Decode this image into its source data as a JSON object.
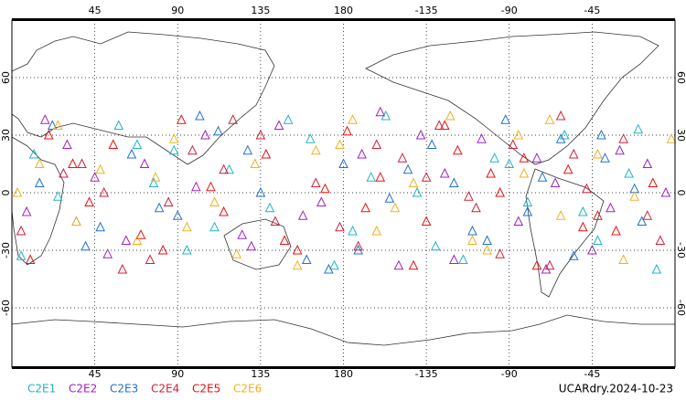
{
  "chart_data": {
    "type": "scatter",
    "source_label": "UCARdry.2024-10-23",
    "xlim": [
      0,
      360
    ],
    "ylim": [
      -90,
      90
    ],
    "grid": true,
    "xticks": [
      45,
      90,
      135,
      180,
      {
        "value": 225,
        "label": "-135"
      },
      {
        "value": 270,
        "label": "-90"
      },
      {
        "value": 315,
        "label": "-45"
      }
    ],
    "yticks": [
      60,
      30,
      0,
      -30,
      -60
    ],
    "series": [
      {
        "name": "C2E1",
        "color": "#1fb4c8",
        "x": [
          12,
          35,
          58,
          77,
          95,
          118,
          140,
          162,
          185,
          203,
          220,
          245,
          262,
          280,
          300,
          318,
          335,
          350,
          25,
          68,
          110,
          150,
          195,
          230,
          270,
          310,
          340,
          5,
          88,
          175
        ],
        "y": [
          20,
          -15,
          35,
          5,
          -30,
          12,
          -8,
          28,
          -20,
          40,
          0,
          -35,
          18,
          -5,
          30,
          -25,
          10,
          -40,
          -2,
          25,
          -18,
          38,
          8,
          -28,
          15,
          -10,
          33,
          -33,
          22,
          -38
        ]
      },
      {
        "name": "C2E2",
        "color": "#a020c0",
        "x": [
          8,
          30,
          52,
          72,
          100,
          125,
          145,
          168,
          190,
          210,
          235,
          255,
          275,
          295,
          315,
          330,
          355,
          18,
          62,
          105,
          158,
          200,
          240,
          285,
          325,
          45,
          130,
          222,
          290,
          345
        ],
        "y": [
          -10,
          25,
          -32,
          15,
          3,
          -22,
          35,
          -5,
          20,
          -38,
          10,
          28,
          -15,
          5,
          -30,
          22,
          0,
          38,
          -25,
          30,
          -12,
          42,
          -35,
          18,
          -8,
          8,
          -28,
          30,
          -40,
          15
        ]
      },
      {
        "name": "C2E3",
        "color": "#2070d0",
        "x": [
          15,
          40,
          65,
          90,
          112,
          135,
          160,
          180,
          205,
          228,
          250,
          268,
          288,
          305,
          322,
          342,
          22,
          80,
          128,
          172,
          215,
          258,
          298,
          338,
          48,
          102,
          188,
          240,
          280,
          320
        ],
        "y": [
          5,
          -28,
          20,
          -12,
          32,
          0,
          -35,
          15,
          -3,
          25,
          -20,
          38,
          8,
          -33,
          18,
          -15,
          35,
          -8,
          22,
          -40,
          12,
          -25,
          28,
          2,
          -18,
          40,
          -30,
          5,
          -10,
          30
        ]
      },
      {
        "name": "C2E4",
        "color": "#d0203c",
        "x": [
          5,
          28,
          50,
          75,
          98,
          120,
          143,
          165,
          188,
          212,
          232,
          252,
          272,
          292,
          312,
          332,
          352,
          38,
          85,
          135,
          178,
          225,
          265,
          305,
          345,
          60,
          115,
          198,
          248,
          298
        ],
        "y": [
          -20,
          10,
          0,
          -35,
          22,
          38,
          -15,
          5,
          -28,
          18,
          35,
          -8,
          25,
          -38,
          2,
          28,
          -25,
          15,
          -5,
          30,
          -18,
          8,
          -32,
          20,
          -12,
          -40,
          12,
          25,
          -2,
          40
        ]
      },
      {
        "name": "C2E5",
        "color": "#e81010",
        "x": [
          20,
          42,
          70,
          92,
          115,
          138,
          155,
          182,
          200,
          225,
          242,
          265,
          285,
          302,
          328,
          348,
          10,
          55,
          108,
          148,
          192,
          235,
          278,
          318,
          33,
          82,
          170,
          218,
          260,
          310
        ],
        "y": [
          30,
          -5,
          -22,
          38,
          -10,
          20,
          -30,
          32,
          8,
          -15,
          22,
          0,
          -38,
          12,
          -20,
          5,
          -35,
          25,
          3,
          -25,
          -8,
          35,
          18,
          -12,
          15,
          -30,
          2,
          -38,
          10,
          -18
        ]
      },
      {
        "name": "C2E6",
        "color": "#f0b020",
        "x": [
          3,
          25,
          48,
          68,
          88,
          110,
          132,
          155,
          178,
          198,
          218,
          238,
          258,
          278,
          298,
          318,
          338,
          358,
          35,
          78,
          122,
          165,
          208,
          250,
          292,
          332,
          15,
          95,
          185,
          275
        ],
        "y": [
          0,
          35,
          12,
          -25,
          28,
          -5,
          15,
          -38,
          25,
          -20,
          5,
          40,
          -30,
          10,
          -12,
          20,
          -2,
          28,
          -15,
          8,
          -32,
          22,
          -8,
          -25,
          38,
          -35,
          15,
          -18,
          38,
          30
        ]
      }
    ]
  }
}
